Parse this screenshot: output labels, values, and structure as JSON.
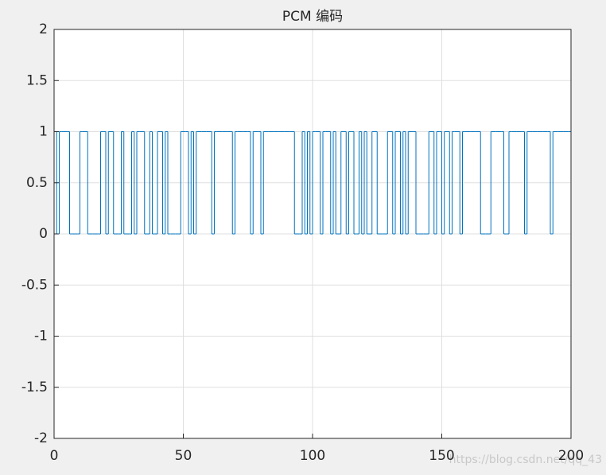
{
  "chart_data": {
    "type": "step",
    "title": "PCM 编码",
    "watermark": "https://blog.csdn.net/qq_43",
    "color": "#0072bd",
    "grid": true,
    "xlim": [
      0,
      200
    ],
    "xticks": [
      0,
      50,
      100,
      150,
      200
    ],
    "ylim": [
      -2,
      2
    ],
    "yticks": [
      -2,
      -1.5,
      -1,
      -0.5,
      0,
      0.5,
      1,
      1.5,
      2
    ],
    "values": [
      1,
      0,
      1,
      1,
      1,
      1,
      0,
      0,
      0,
      0,
      1,
      1,
      1,
      0,
      0,
      0,
      0,
      0,
      1,
      1,
      0,
      1,
      1,
      0,
      0,
      0,
      1,
      0,
      0,
      0,
      1,
      0,
      1,
      1,
      1,
      0,
      0,
      1,
      0,
      0,
      1,
      1,
      0,
      1,
      0,
      0,
      0,
      0,
      0,
      1,
      1,
      1,
      0,
      1,
      0,
      1,
      1,
      1,
      1,
      1,
      1,
      0,
      1,
      1,
      1,
      1,
      1,
      1,
      1,
      0,
      1,
      1,
      1,
      1,
      1,
      1,
      0,
      1,
      1,
      1,
      0,
      1,
      1,
      1,
      1,
      1,
      1,
      1,
      1,
      1,
      1,
      1,
      1,
      0,
      0,
      0,
      1,
      0,
      1,
      0,
      1,
      1,
      1,
      0,
      1,
      1,
      1,
      0,
      1,
      0,
      0,
      1,
      1,
      0,
      1,
      1,
      0,
      0,
      1,
      0,
      1,
      0,
      0,
      1,
      1,
      0,
      0,
      0,
      0,
      1,
      1,
      0,
      1,
      1,
      0,
      1,
      0,
      1,
      1,
      1,
      0,
      0,
      0,
      0,
      0,
      1,
      1,
      0,
      1,
      1,
      0,
      1,
      1,
      0,
      1,
      1,
      1,
      0,
      1,
      1,
      1,
      1,
      1,
      1,
      1,
      0,
      0,
      0,
      0,
      1,
      1,
      1,
      1,
      1,
      0,
      0,
      1,
      1,
      1,
      1,
      1,
      1,
      0,
      1,
      1,
      1,
      1,
      1,
      1,
      1,
      1,
      1,
      0,
      1,
      1,
      1,
      1,
      1,
      1,
      1
    ]
  }
}
